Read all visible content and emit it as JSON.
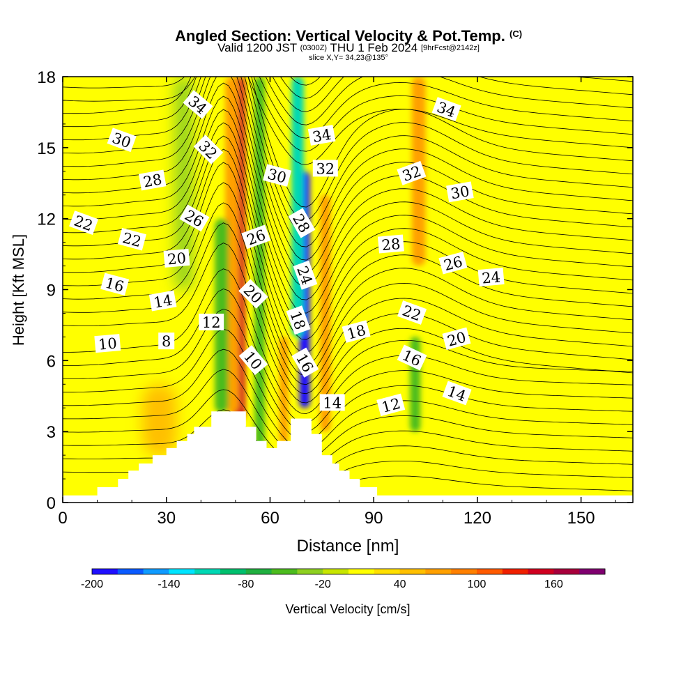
{
  "title": {
    "main": "Angled Section: Vertical Velocity & Pot.Temp.",
    "main_unit": "(C)",
    "valid_prefix": "Valid 1200 JST",
    "valid_utc": "(0300Z)",
    "valid_date": "THU 1 Feb 2024",
    "forecast": "[9hrFcst@2142z]",
    "slice": "slice X,Y= 34,23@135°"
  },
  "chart_data": {
    "type": "heatmap",
    "xlabel": "Distance [nm]",
    "ylabel": "Height [Kft MSL]",
    "xlim": [
      0,
      165
    ],
    "ylim": [
      0,
      18
    ],
    "xticks": [
      0,
      30,
      60,
      90,
      120,
      150
    ],
    "yticks": [
      0,
      3,
      6,
      9,
      12,
      15,
      18
    ],
    "background_field": "Vertical Velocity [cm/s]",
    "dominant_background_value": 10,
    "colorbar": {
      "label": "Vertical Velocity [cm/s]",
      "levels": [
        -200,
        -180,
        -160,
        -140,
        -120,
        -100,
        -80,
        -60,
        -40,
        -20,
        0,
        20,
        40,
        60,
        80,
        100,
        120,
        140,
        160,
        180,
        200
      ],
      "tick_labels": [
        "-200",
        "-140",
        "-80",
        "-20",
        "40",
        "100",
        "160"
      ],
      "tick_values": [
        -200,
        -140,
        -80,
        -20,
        40,
        100,
        160
      ],
      "colors": [
        "#1f0fff",
        "#0a5aff",
        "#0f9bff",
        "#00e5ff",
        "#00d8b4",
        "#00c06e",
        "#20b040",
        "#4cbc1e",
        "#8ed020",
        "#c8e600",
        "#ffff00",
        "#ffe000",
        "#ffc000",
        "#ffa000",
        "#ff8000",
        "#ff5a00",
        "#f02000",
        "#d00020",
        "#a8003c",
        "#800070"
      ]
    },
    "terrain_kft": [
      {
        "x": 0,
        "h": 0.3
      },
      {
        "x": 10,
        "h": 0.3
      },
      {
        "x": 10,
        "h": 0.65
      },
      {
        "x": 16,
        "h": 0.65
      },
      {
        "x": 16,
        "h": 1.0
      },
      {
        "x": 19,
        "h": 1.0
      },
      {
        "x": 19,
        "h": 1.35
      },
      {
        "x": 22,
        "h": 1.35
      },
      {
        "x": 22,
        "h": 1.65
      },
      {
        "x": 26,
        "h": 1.65
      },
      {
        "x": 26,
        "h": 2.0
      },
      {
        "x": 30,
        "h": 2.0
      },
      {
        "x": 30,
        "h": 2.3
      },
      {
        "x": 33,
        "h": 2.3
      },
      {
        "x": 33,
        "h": 2.6
      },
      {
        "x": 36,
        "h": 2.6
      },
      {
        "x": 36,
        "h": 2.9
      },
      {
        "x": 38,
        "h": 2.9
      },
      {
        "x": 38,
        "h": 3.2
      },
      {
        "x": 43,
        "h": 3.2
      },
      {
        "x": 43,
        "h": 3.85
      },
      {
        "x": 53,
        "h": 3.85
      },
      {
        "x": 53,
        "h": 3.2
      },
      {
        "x": 56,
        "h": 3.2
      },
      {
        "x": 56,
        "h": 2.6
      },
      {
        "x": 59,
        "h": 2.6
      },
      {
        "x": 59,
        "h": 2.3
      },
      {
        "x": 62,
        "h": 2.3
      },
      {
        "x": 62,
        "h": 2.6
      },
      {
        "x": 66,
        "h": 2.6
      },
      {
        "x": 66,
        "h": 3.55
      },
      {
        "x": 72,
        "h": 3.55
      },
      {
        "x": 72,
        "h": 2.9
      },
      {
        "x": 75,
        "h": 2.9
      },
      {
        "x": 75,
        "h": 2.0
      },
      {
        "x": 78,
        "h": 2.0
      },
      {
        "x": 78,
        "h": 1.65
      },
      {
        "x": 80,
        "h": 1.65
      },
      {
        "x": 80,
        "h": 1.35
      },
      {
        "x": 83,
        "h": 1.35
      },
      {
        "x": 83,
        "h": 1.0
      },
      {
        "x": 86,
        "h": 1.0
      },
      {
        "x": 86,
        "h": 0.65
      },
      {
        "x": 91,
        "h": 0.65
      },
      {
        "x": 91,
        "h": 0.3
      },
      {
        "x": 165,
        "h": 0.3
      }
    ],
    "velocity_features": [
      {
        "x": 51,
        "h0": 3.5,
        "h1": 18,
        "w": 3.5,
        "value": 140
      },
      {
        "x": 49,
        "h0": 3.8,
        "h1": 18,
        "w": 4,
        "value": 60
      },
      {
        "x": 46,
        "h0": 3.8,
        "h1": 12,
        "w": 4,
        "value": -60
      },
      {
        "x": 57,
        "h0": 2.3,
        "h1": 18,
        "w": 3,
        "value": -60
      },
      {
        "x": 64,
        "h0": 2.5,
        "h1": 7,
        "w": 2.5,
        "value": 60
      },
      {
        "x": 70,
        "h0": 4,
        "h1": 14,
        "w": 3,
        "value": -200
      },
      {
        "x": 68,
        "h0": 7,
        "h1": 18,
        "w": 3.5,
        "value": -120
      },
      {
        "x": 76,
        "h0": 3,
        "h1": 13,
        "w": 3,
        "value": 60
      },
      {
        "x": 103,
        "h0": 10,
        "h1": 18,
        "w": 4,
        "value": 60
      },
      {
        "x": 102,
        "h0": 3,
        "h1": 7,
        "w": 3,
        "value": -60
      },
      {
        "x": 35,
        "h0": 9,
        "h1": 18,
        "w": 5,
        "value": -40
      },
      {
        "x": 28,
        "h0": 2,
        "h1": 5,
        "w": 10,
        "value": 40
      }
    ],
    "theta_contour_labels": [
      {
        "text": "34",
        "x": 39,
        "y": 16.8,
        "rot": 40
      },
      {
        "text": "30",
        "x": 17,
        "y": 15.3,
        "rot": 20
      },
      {
        "text": "32",
        "x": 42,
        "y": 14.9,
        "rot": 45
      },
      {
        "text": "34",
        "x": 75,
        "y": 15.5,
        "rot": -10
      },
      {
        "text": "34",
        "x": 111,
        "y": 16.6,
        "rot": 20
      },
      {
        "text": "28",
        "x": 26,
        "y": 13.6,
        "rot": -10
      },
      {
        "text": "30",
        "x": 62,
        "y": 13.8,
        "rot": 15
      },
      {
        "text": "32",
        "x": 76,
        "y": 14.1,
        "rot": 0
      },
      {
        "text": "32",
        "x": 101,
        "y": 13.9,
        "rot": -20
      },
      {
        "text": "30",
        "x": 115,
        "y": 13.1,
        "rot": -10
      },
      {
        "text": "22",
        "x": 6,
        "y": 11.8,
        "rot": 20
      },
      {
        "text": "26",
        "x": 38,
        "y": 12,
        "rot": 30
      },
      {
        "text": "28",
        "x": 69,
        "y": 11.8,
        "rot": 60
      },
      {
        "text": "26",
        "x": 56,
        "y": 11.2,
        "rot": -20
      },
      {
        "text": "22",
        "x": 20,
        "y": 11.1,
        "rot": 15
      },
      {
        "text": "28",
        "x": 95,
        "y": 10.9,
        "rot": -5
      },
      {
        "text": "20",
        "x": 33,
        "y": 10.3,
        "rot": -5
      },
      {
        "text": "26",
        "x": 113,
        "y": 10.1,
        "rot": -15
      },
      {
        "text": "24",
        "x": 70,
        "y": 9.6,
        "rot": 70
      },
      {
        "text": "24",
        "x": 124,
        "y": 9.5,
        "rot": -5
      },
      {
        "text": "16",
        "x": 15,
        "y": 9.2,
        "rot": 15
      },
      {
        "text": "20",
        "x": 55,
        "y": 8.8,
        "rot": 45
      },
      {
        "text": "14",
        "x": 29,
        "y": 8.5,
        "rot": -10
      },
      {
        "text": "22",
        "x": 101,
        "y": 8,
        "rot": 20
      },
      {
        "text": "18",
        "x": 68,
        "y": 7.7,
        "rot": 70
      },
      {
        "text": "12",
        "x": 43,
        "y": 7.6,
        "rot": 0
      },
      {
        "text": "18",
        "x": 85,
        "y": 7.2,
        "rot": -15
      },
      {
        "text": "20",
        "x": 114,
        "y": 6.9,
        "rot": -15
      },
      {
        "text": "10",
        "x": 13,
        "y": 6.7,
        "rot": -5
      },
      {
        "text": "8",
        "x": 30,
        "y": 6.8,
        "rot": 0
      },
      {
        "text": "16",
        "x": 101,
        "y": 6.1,
        "rot": 25
      },
      {
        "text": "10",
        "x": 55,
        "y": 6,
        "rot": 50
      },
      {
        "text": "16",
        "x": 70,
        "y": 5.9,
        "rot": 60
      },
      {
        "text": "14",
        "x": 114,
        "y": 4.6,
        "rot": 20
      },
      {
        "text": "14",
        "x": 78,
        "y": 4.2,
        "rot": 0
      },
      {
        "text": "12",
        "x": 95,
        "y": 4.1,
        "rot": -15
      }
    ],
    "grid": false
  }
}
